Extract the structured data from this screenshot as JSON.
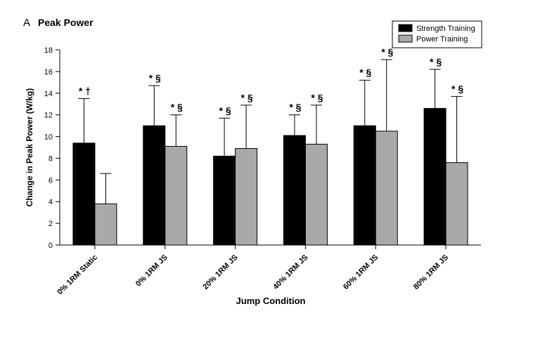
{
  "chart_data": {
    "type": "bar",
    "panel_letter": "A",
    "title": "Peak Power",
    "xlabel": "Jump Condition",
    "ylabel": "Change in Peak Power (W/kg)",
    "ylim": [
      0,
      18
    ],
    "yticks": [
      "0",
      "2",
      "4",
      "6",
      "8",
      "10",
      "12",
      "14",
      "16",
      "18"
    ],
    "legend_position": "top-right",
    "categories": [
      "0% 1RM Static",
      "0% 1RM JS",
      "20% 1RM JS",
      "40% 1RM JS",
      "60% 1RM JS",
      "80% 1RM JS"
    ],
    "series": [
      {
        "name": "Strength Training",
        "color": "#000000",
        "values": [
          9.4,
          11.0,
          8.2,
          10.1,
          11.0,
          12.6
        ],
        "error_upper": [
          13.5,
          14.7,
          11.7,
          12.0,
          15.2,
          16.2
        ],
        "annotations": [
          "* †",
          "* §",
          "* §",
          "* §",
          "* §",
          "* §"
        ]
      },
      {
        "name": "Power Training",
        "color": "#a9a9a9",
        "values": [
          3.8,
          9.1,
          8.9,
          9.3,
          10.5,
          7.6
        ],
        "error_upper": [
          6.6,
          12.0,
          12.9,
          12.9,
          17.1,
          13.7
        ],
        "annotations": [
          "",
          "* §",
          "* §",
          "* §",
          "* §",
          "* §"
        ]
      }
    ]
  }
}
